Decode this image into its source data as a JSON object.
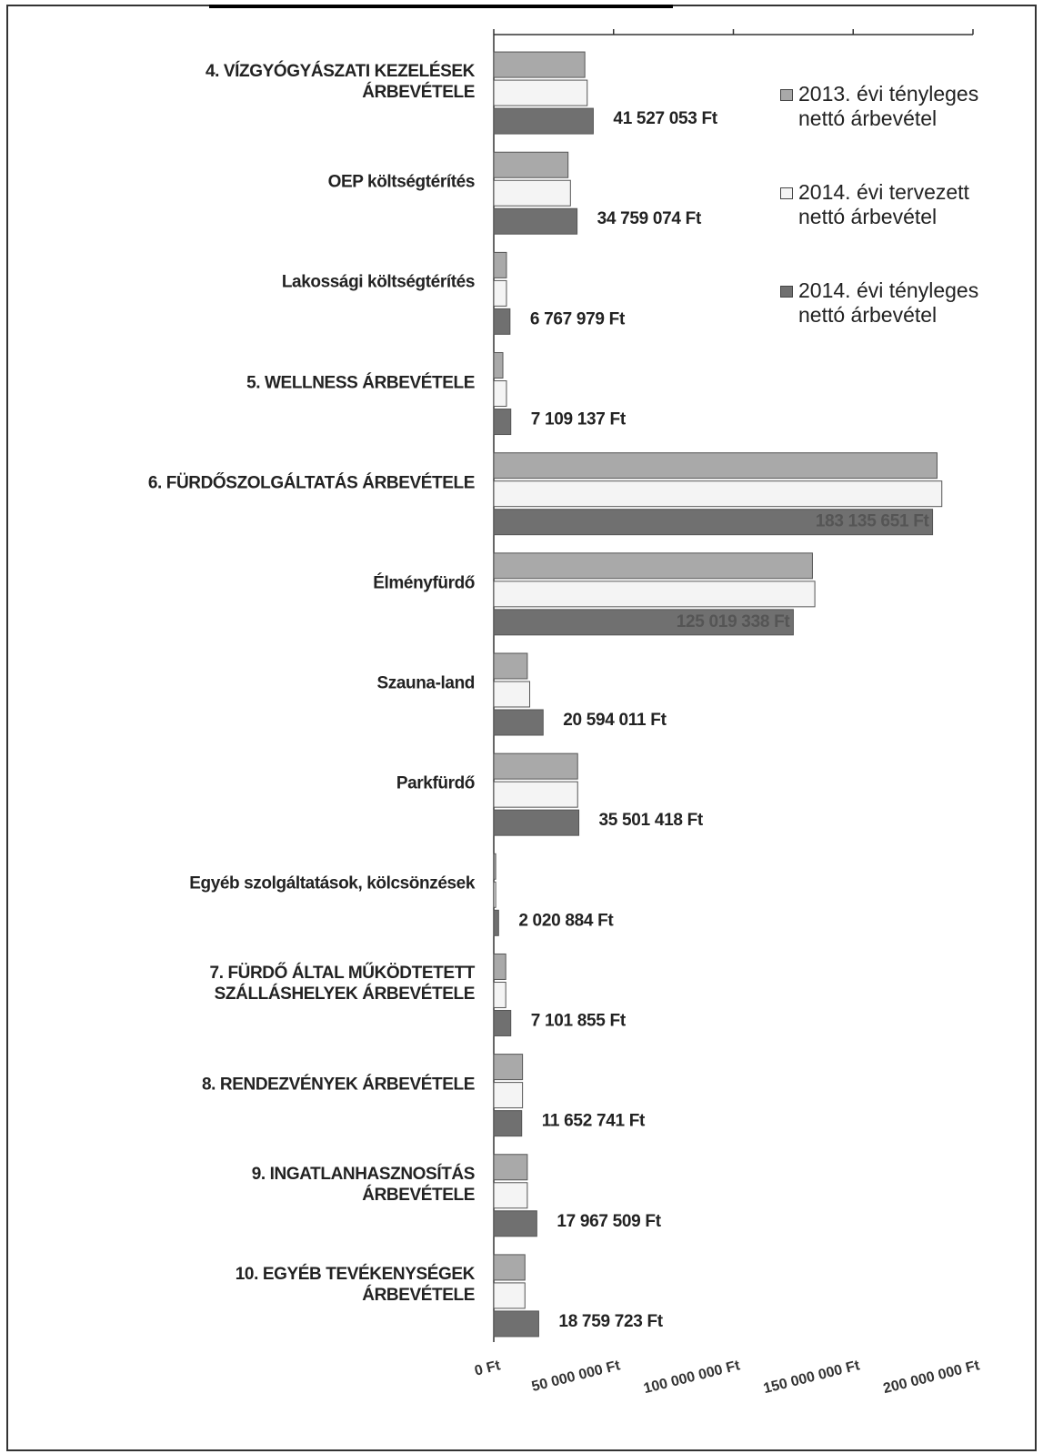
{
  "chart_data": {
    "type": "bar",
    "orientation": "horizontal",
    "categories": [
      "4. VÍZGYÓGYÁSZATI KEZELÉSEK\nÁRBEVÉTELE",
      "OEP költségtérítés",
      "Lakossági költségtérítés",
      "5. WELLNESS ÁRBEVÉTELE",
      "6. FÜRDŐSZOLGÁLTATÁS ÁRBEVÉTELE",
      "Élményfürdő",
      "Szauna-land",
      "Parkfürdő",
      "Egyéb szolgáltatások, kölcsönzések",
      "7. FÜRDŐ ÁLTAL MŰKÖDTETETT\nSZÁLLÁSHELYEK ÁRBEVÉTELE",
      "8. RENDEZVÉNYEK ÁRBEVÉTELE",
      "9. INGATLANHASZNOSÍTÁS\nÁRBEVÉTELE",
      "10. EGYÉB TEVÉKENYSÉGEK\nÁRBEVÉTELE"
    ],
    "series": [
      {
        "name": "2013. évi tényleges\nnettó árbevétel",
        "color": "#a9a9a9",
        "values": [
          38000000,
          31000000,
          5300000,
          3800000,
          185000000,
          133000000,
          14000000,
          35000000,
          800000,
          5000000,
          12000000,
          14000000,
          13000000
        ]
      },
      {
        "name": "2014. évi tervezett\nnettó árbevétel",
        "color": "#f4f4f4",
        "values": [
          39000000,
          32000000,
          5300000,
          5300000,
          187000000,
          134000000,
          15000000,
          35000000,
          800000,
          5000000,
          12000000,
          14000000,
          13000000
        ]
      },
      {
        "name": "2014. évi tényleges\nnettó árbevétel",
        "color": "#707070",
        "values": [
          41527053,
          34759074,
          6767979,
          7109137,
          183135651,
          125019338,
          20594011,
          35501418,
          2020884,
          7101855,
          11652741,
          17967509,
          18759723
        ],
        "value_labels": [
          "41 527 053 Ft",
          "34 759 074 Ft",
          "6 767 979 Ft",
          "7 109 137 Ft",
          "183 135 651 Ft",
          "125 019 338 Ft",
          "20 594 011 Ft",
          "35 501 418 Ft",
          "2 020 884 Ft",
          "7 101 855 Ft",
          "11 652 741 Ft",
          "17 967 509 Ft",
          "18 759 723 Ft"
        ]
      }
    ],
    "xlim": [
      0,
      200000000
    ],
    "xticks": [
      {
        "value": 0,
        "label": "0 Ft"
      },
      {
        "value": 50000000,
        "label": "50 000 000 Ft"
      },
      {
        "value": 100000000,
        "label": "100 000 000 Ft"
      },
      {
        "value": 150000000,
        "label": "150 000 000 Ft"
      },
      {
        "value": 200000000,
        "label": "200 000 000 Ft"
      }
    ],
    "legend": "right"
  }
}
